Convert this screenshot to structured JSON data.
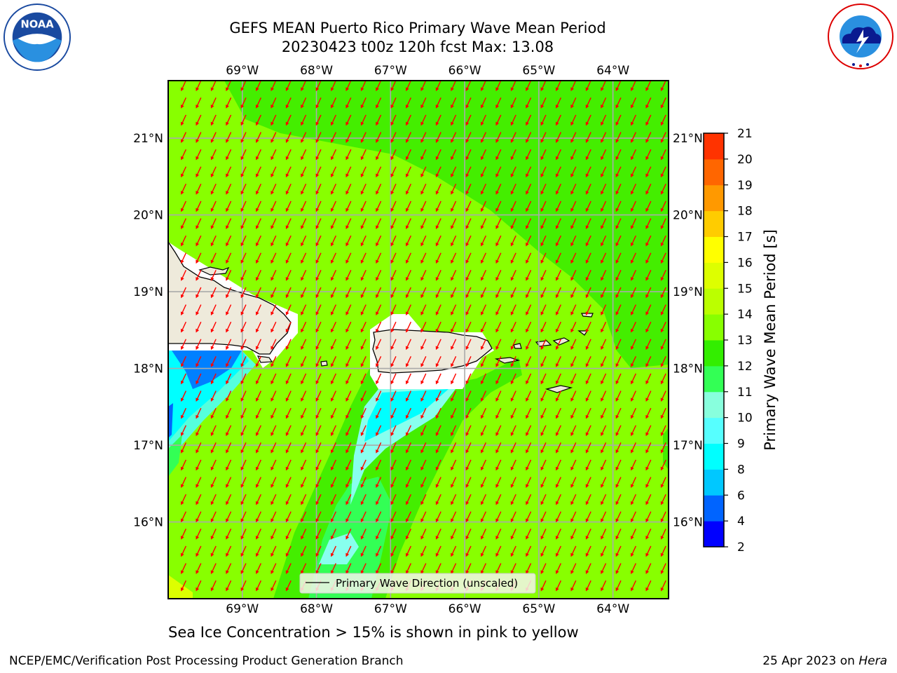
{
  "title_line1": "GEFS MEAN Puerto Rico Primary Wave Mean Period",
  "title_line2": "20230423 t00z 120h fcst   Max: 13.08",
  "logos": {
    "left": "noaa-logo",
    "right": "national-weather-service-logo"
  },
  "map": {
    "projection": "plate-carree",
    "lon_ticks": [
      "69°W",
      "68°W",
      "67°W",
      "66°W",
      "65°W",
      "64°W"
    ],
    "lat_ticks": [
      "21°N",
      "20°N",
      "19°N",
      "18°N",
      "17°N",
      "16°N"
    ],
    "lon_range": [
      -70.0,
      -63.25
    ],
    "lat_range": [
      15.0,
      21.75
    ],
    "gridlines": true,
    "arrow_color": "#ff0000",
    "arrow_direction": "toward south-southwest",
    "legend_label": "Primary Wave Direction (unscaled)",
    "legend_placement": "lower-center",
    "colors": {
      "background_field": "#88ff00",
      "higher_period_zone": "#44ee00",
      "land": "#eeeadb",
      "mask": "#ffffff",
      "low_period": "#00ffff",
      "very_low_period": "#0080ff",
      "mid_low_period": "#88ffee"
    }
  },
  "colorbar": {
    "label": "Primary Wave Mean Period [s]",
    "ticks": [
      "2",
      "4",
      "6",
      "8",
      "9",
      "10",
      "11",
      "12",
      "13",
      "14",
      "15",
      "16",
      "17",
      "18",
      "19",
      "20",
      "21"
    ],
    "colors": [
      "#0000ff",
      "#0064ff",
      "#00c8ff",
      "#00ffff",
      "#56ffff",
      "#88ffdd",
      "#33ff55",
      "#33ee00",
      "#88ff00",
      "#bbff00",
      "#ddff00",
      "#ffff00",
      "#ffcc00",
      "#ff9900",
      "#ff6600",
      "#ff3300",
      "#ff0000"
    ]
  },
  "caption": "Sea Ice Concentration > 15% is shown in pink to yellow",
  "footer_left": "NCEP/EMC/Verification Post Processing Product Generation Branch",
  "footer_right_prefix": "25 Apr 2023 on ",
  "footer_right_host": "Hera"
}
